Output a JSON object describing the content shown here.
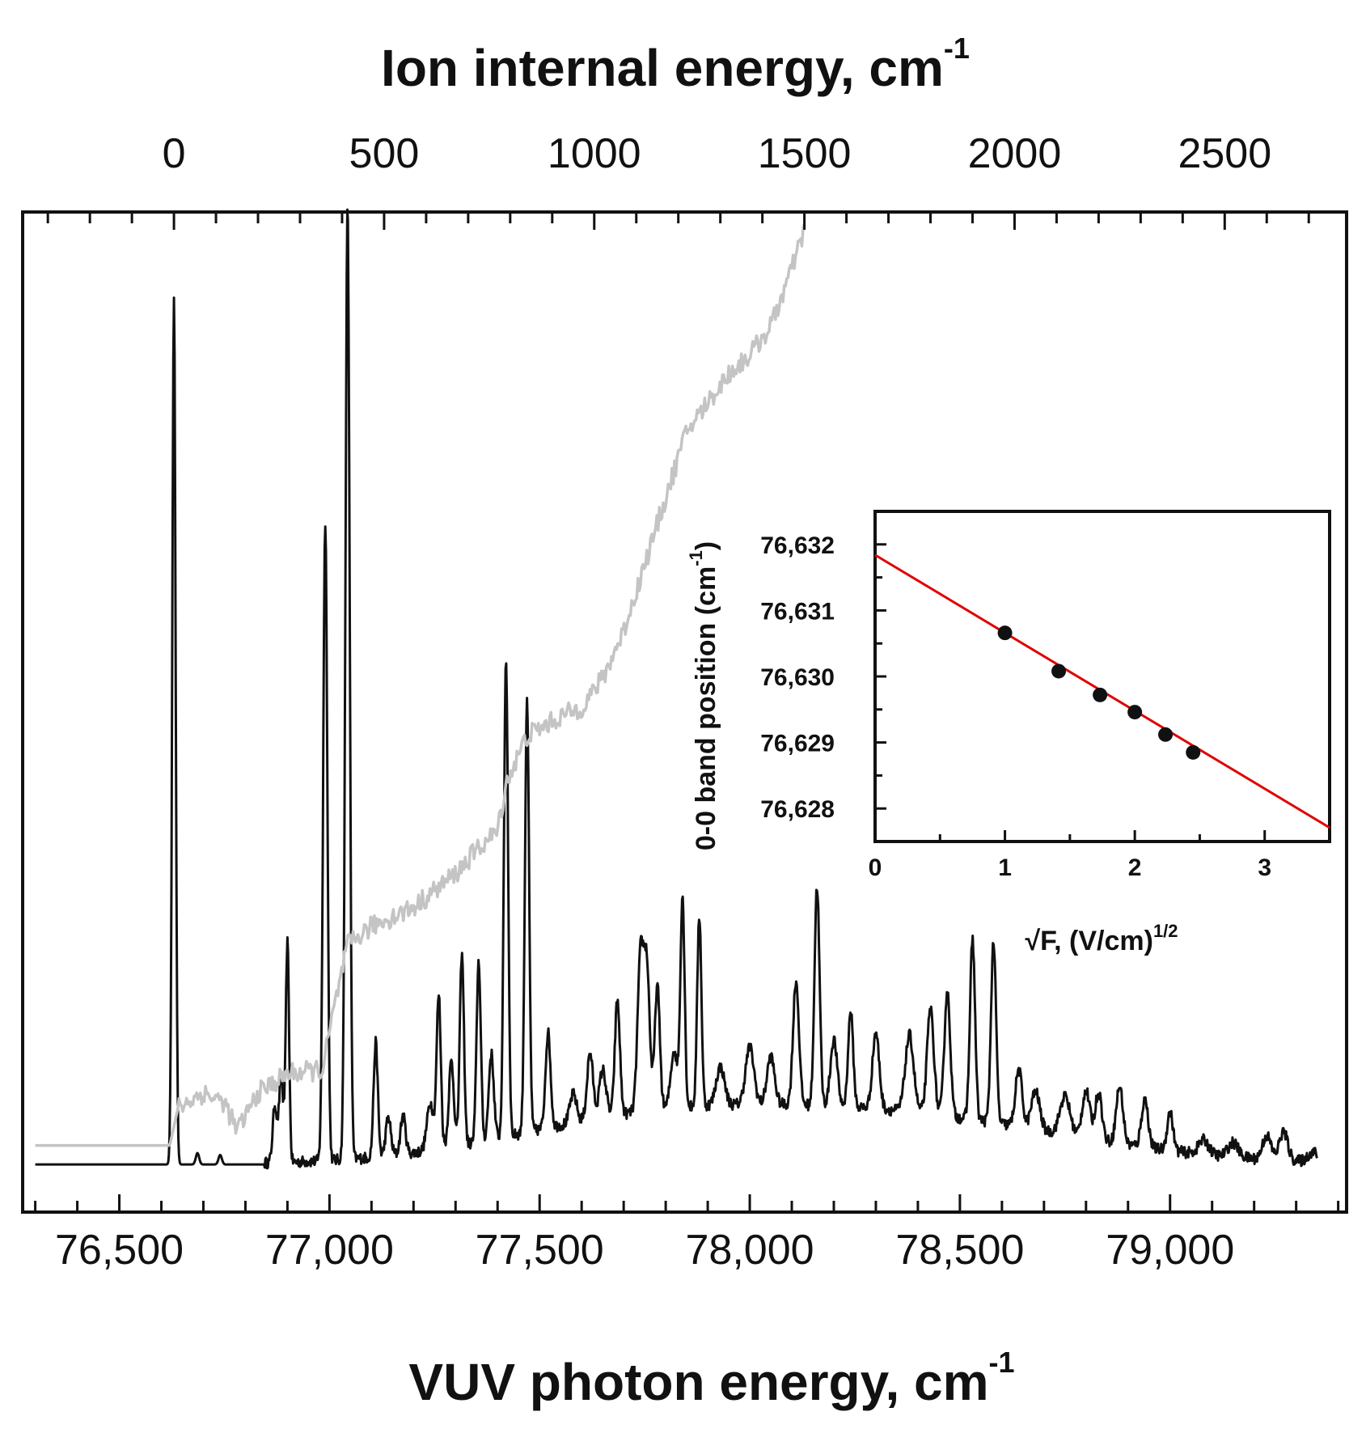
{
  "chart_data": [
    {
      "type": "line",
      "role": "main-spectrum",
      "xlabel": "VUV photon energy, cm",
      "xlabel_sup": "-1",
      "xlim": [
        76270,
        79420
      ],
      "x_ticks": [
        76500,
        77000,
        77500,
        78000,
        78500,
        79000
      ],
      "x_tick_labels": [
        "76,500",
        "77,000",
        "77,500",
        "78,000",
        "78,500",
        "79,000"
      ],
      "top_axis": {
        "label": "Ion internal energy, cm",
        "label_sup": "-1",
        "origin_photon_energy": 76630,
        "ticks": [
          0,
          500,
          1000,
          1500,
          2000,
          2500
        ],
        "tick_labels": [
          "0",
          "500",
          "1000",
          "1500",
          "2000",
          "2500"
        ]
      },
      "ylim": [
        -0.05,
        1.0
      ],
      "series": [
        {
          "name": "spectrum",
          "color": "#111111",
          "baseline": 0.0,
          "noise": 0.006,
          "peaks": [
            [
              76630,
              0.91,
              4
            ],
            [
              76686,
              0.012,
              4
            ],
            [
              76740,
              0.01,
              4
            ],
            [
              76870,
              0.06,
              5
            ],
            [
              76885,
              0.09,
              5
            ],
            [
              76900,
              0.23,
              4
            ],
            [
              76990,
              0.67,
              5
            ],
            [
              77043,
              1.0,
              5
            ],
            [
              77110,
              0.12,
              5
            ],
            [
              77140,
              0.04,
              6
            ],
            [
              77175,
              0.04,
              6
            ],
            [
              77240,
              0.05,
              8
            ],
            [
              77260,
              0.16,
              5
            ],
            [
              77290,
              0.09,
              6
            ],
            [
              77315,
              0.2,
              5
            ],
            [
              77355,
              0.19,
              5
            ],
            [
              77385,
              0.09,
              6
            ],
            [
              77420,
              0.5,
              5
            ],
            [
              77470,
              0.45,
              5
            ],
            [
              77520,
              0.1,
              6
            ],
            [
              77580,
              0.03,
              8
            ],
            [
              77620,
              0.07,
              7
            ],
            [
              77650,
              0.05,
              8
            ],
            [
              77685,
              0.12,
              6
            ],
            [
              77740,
              0.16,
              7
            ],
            [
              77755,
              0.15,
              7
            ],
            [
              77780,
              0.13,
              6
            ],
            [
              77820,
              0.06,
              8
            ],
            [
              77840,
              0.22,
              5
            ],
            [
              77880,
              0.2,
              5
            ],
            [
              77930,
              0.04,
              10
            ],
            [
              78000,
              0.06,
              10
            ],
            [
              78050,
              0.05,
              9
            ],
            [
              78110,
              0.13,
              7
            ],
            [
              78160,
              0.23,
              6
            ],
            [
              78200,
              0.07,
              8
            ],
            [
              78240,
              0.1,
              6
            ],
            [
              78300,
              0.08,
              8
            ],
            [
              78380,
              0.08,
              10
            ],
            [
              78430,
              0.11,
              8
            ],
            [
              78470,
              0.13,
              7
            ],
            [
              78530,
              0.19,
              6
            ],
            [
              78580,
              0.19,
              6
            ],
            [
              78640,
              0.06,
              8
            ],
            [
              78680,
              0.04,
              10
            ],
            [
              78750,
              0.04,
              12
            ],
            [
              78800,
              0.05,
              9
            ],
            [
              78830,
              0.05,
              8
            ],
            [
              78880,
              0.06,
              8
            ],
            [
              78940,
              0.05,
              8
            ],
            [
              79000,
              0.04,
              7
            ],
            [
              79080,
              0.015,
              12
            ],
            [
              79150,
              0.015,
              12
            ],
            [
              79230,
              0.025,
              10
            ],
            [
              79270,
              0.03,
              10
            ],
            [
              79340,
              0.01,
              12
            ]
          ],
          "broad_background": [
            [
              78000,
              0.035,
              450
            ],
            [
              78450,
              0.03,
              400
            ],
            [
              77700,
              0.02,
              300
            ]
          ]
        },
        {
          "name": "integrated",
          "color": "#c4c4c4",
          "points": [
            [
              76300,
              0.02
            ],
            [
              76620,
              0.02
            ],
            [
              76640,
              0.06
            ],
            [
              76700,
              0.075
            ],
            [
              76750,
              0.065
            ],
            [
              76780,
              0.035
            ],
            [
              76830,
              0.075
            ],
            [
              76900,
              0.095
            ],
            [
              76985,
              0.1
            ],
            [
              77000,
              0.14
            ],
            [
              77043,
              0.23
            ],
            [
              77100,
              0.25
            ],
            [
              77200,
              0.27
            ],
            [
              77300,
              0.305
            ],
            [
              77350,
              0.33
            ],
            [
              77400,
              0.35
            ],
            [
              77420,
              0.4
            ],
            [
              77470,
              0.45
            ],
            [
              77550,
              0.47
            ],
            [
              77600,
              0.48
            ],
            [
              77650,
              0.51
            ],
            [
              77700,
              0.56
            ],
            [
              77750,
              0.63
            ],
            [
              77800,
              0.7
            ],
            [
              77850,
              0.77
            ],
            [
              77900,
              0.8
            ],
            [
              77950,
              0.83
            ],
            [
              78000,
              0.85
            ],
            [
              78050,
              0.88
            ],
            [
              78100,
              0.94
            ],
            [
              78130,
              0.98
            ]
          ]
        }
      ]
    },
    {
      "type": "scatter",
      "role": "inset",
      "xlabel": "√F, (V/cm)",
      "xlabel_sup": "1/2",
      "ylabel": "0-0 band position (cm",
      "ylabel_end": ")",
      "ylabel_sup": "-1",
      "xlim": [
        0,
        3.5
      ],
      "ylim": [
        76627.5,
        76632.5
      ],
      "x_ticks": [
        0,
        1,
        2,
        3
      ],
      "x_tick_labels": [
        "0",
        "1",
        "2",
        "3"
      ],
      "y_ticks": [
        76628,
        76629,
        76630,
        76631,
        76632
      ],
      "y_tick_labels": [
        "76,628",
        "76,629",
        "76,630",
        "76,631",
        "76,632"
      ],
      "points": [
        [
          1.0,
          76630.66
        ],
        [
          1.414,
          76630.08
        ],
        [
          1.732,
          76629.72
        ],
        [
          2.0,
          76629.46
        ],
        [
          2.236,
          76629.12
        ],
        [
          2.449,
          76628.85
        ]
      ],
      "fit_line": {
        "intercept": 76631.84,
        "slope": -1.18,
        "color": "#e00000"
      },
      "point_color": "#111111"
    }
  ]
}
